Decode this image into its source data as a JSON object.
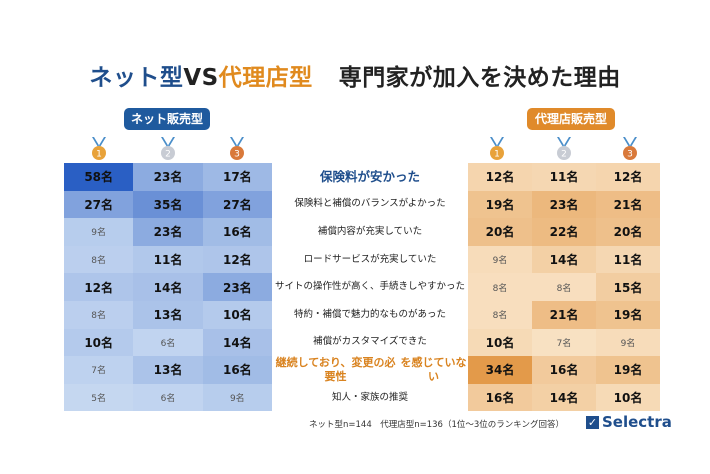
{
  "title": {
    "part1": "ネット型",
    "vs": "VS",
    "part2": "代理店型",
    "rest": "専門家が加入を決めた理由"
  },
  "chart_data": {
    "type": "table",
    "title": "ネット型VS代理店型　専門家が加入を決めた理由",
    "groups": [
      "ネット販売型",
      "代理店販売型"
    ],
    "rank_columns": [
      "1",
      "2",
      "3"
    ],
    "categories": [
      "保険料が安かった",
      "保険料と補償のバランスがよかった",
      "補償内容が充実していた",
      "ロードサービスが充実していた",
      "サイトの操作性が高く、手続きしやすかった",
      "特約・補償で魅力的なものがあった",
      "補償がカスタマイズできた",
      "継続しており、変更の必要性を感じていない",
      "知人・家族の推奨"
    ],
    "category_lines": [
      [
        "保険料が安かった"
      ],
      [
        "保険料と補償のバランスがよかった"
      ],
      [
        "補償内容が充実していた"
      ],
      [
        "ロードサービスが充実していた"
      ],
      [
        "サイトの操作性が高く、",
        "手続きしやすかった"
      ],
      [
        "特約・補償で魅力的なものがあった"
      ],
      [
        "補償がカスタマイズできた"
      ],
      [
        "継続しており、変更の必要性",
        "を感じていない"
      ],
      [
        "知人・家族の推奨"
      ]
    ],
    "highlight": [
      "blue",
      null,
      null,
      null,
      null,
      null,
      null,
      "orange",
      null
    ],
    "unit": "名",
    "net": [
      [
        58,
        23,
        17
      ],
      [
        27,
        35,
        27
      ],
      [
        9,
        23,
        16
      ],
      [
        8,
        11,
        12
      ],
      [
        12,
        14,
        23
      ],
      [
        8,
        13,
        10
      ],
      [
        10,
        6,
        14
      ],
      [
        7,
        13,
        16
      ],
      [
        5,
        6,
        9
      ]
    ],
    "agency": [
      [
        12,
        11,
        12
      ],
      [
        19,
        23,
        21
      ],
      [
        20,
        22,
        20
      ],
      [
        9,
        14,
        11
      ],
      [
        8,
        8,
        15
      ],
      [
        8,
        21,
        19
      ],
      [
        10,
        7,
        9
      ],
      [
        34,
        16,
        19
      ],
      [
        16,
        14,
        10
      ]
    ]
  },
  "footer": "ネット型n=144　代理店型n=136（1位〜3位のランキング回答）",
  "logo": "Selectra",
  "colors": {
    "blue": "#1f4e8c",
    "orange": "#e08a2a",
    "gold": "#e8a23a",
    "silver": "#c8ccd4",
    "bronze": "#d9793a"
  }
}
